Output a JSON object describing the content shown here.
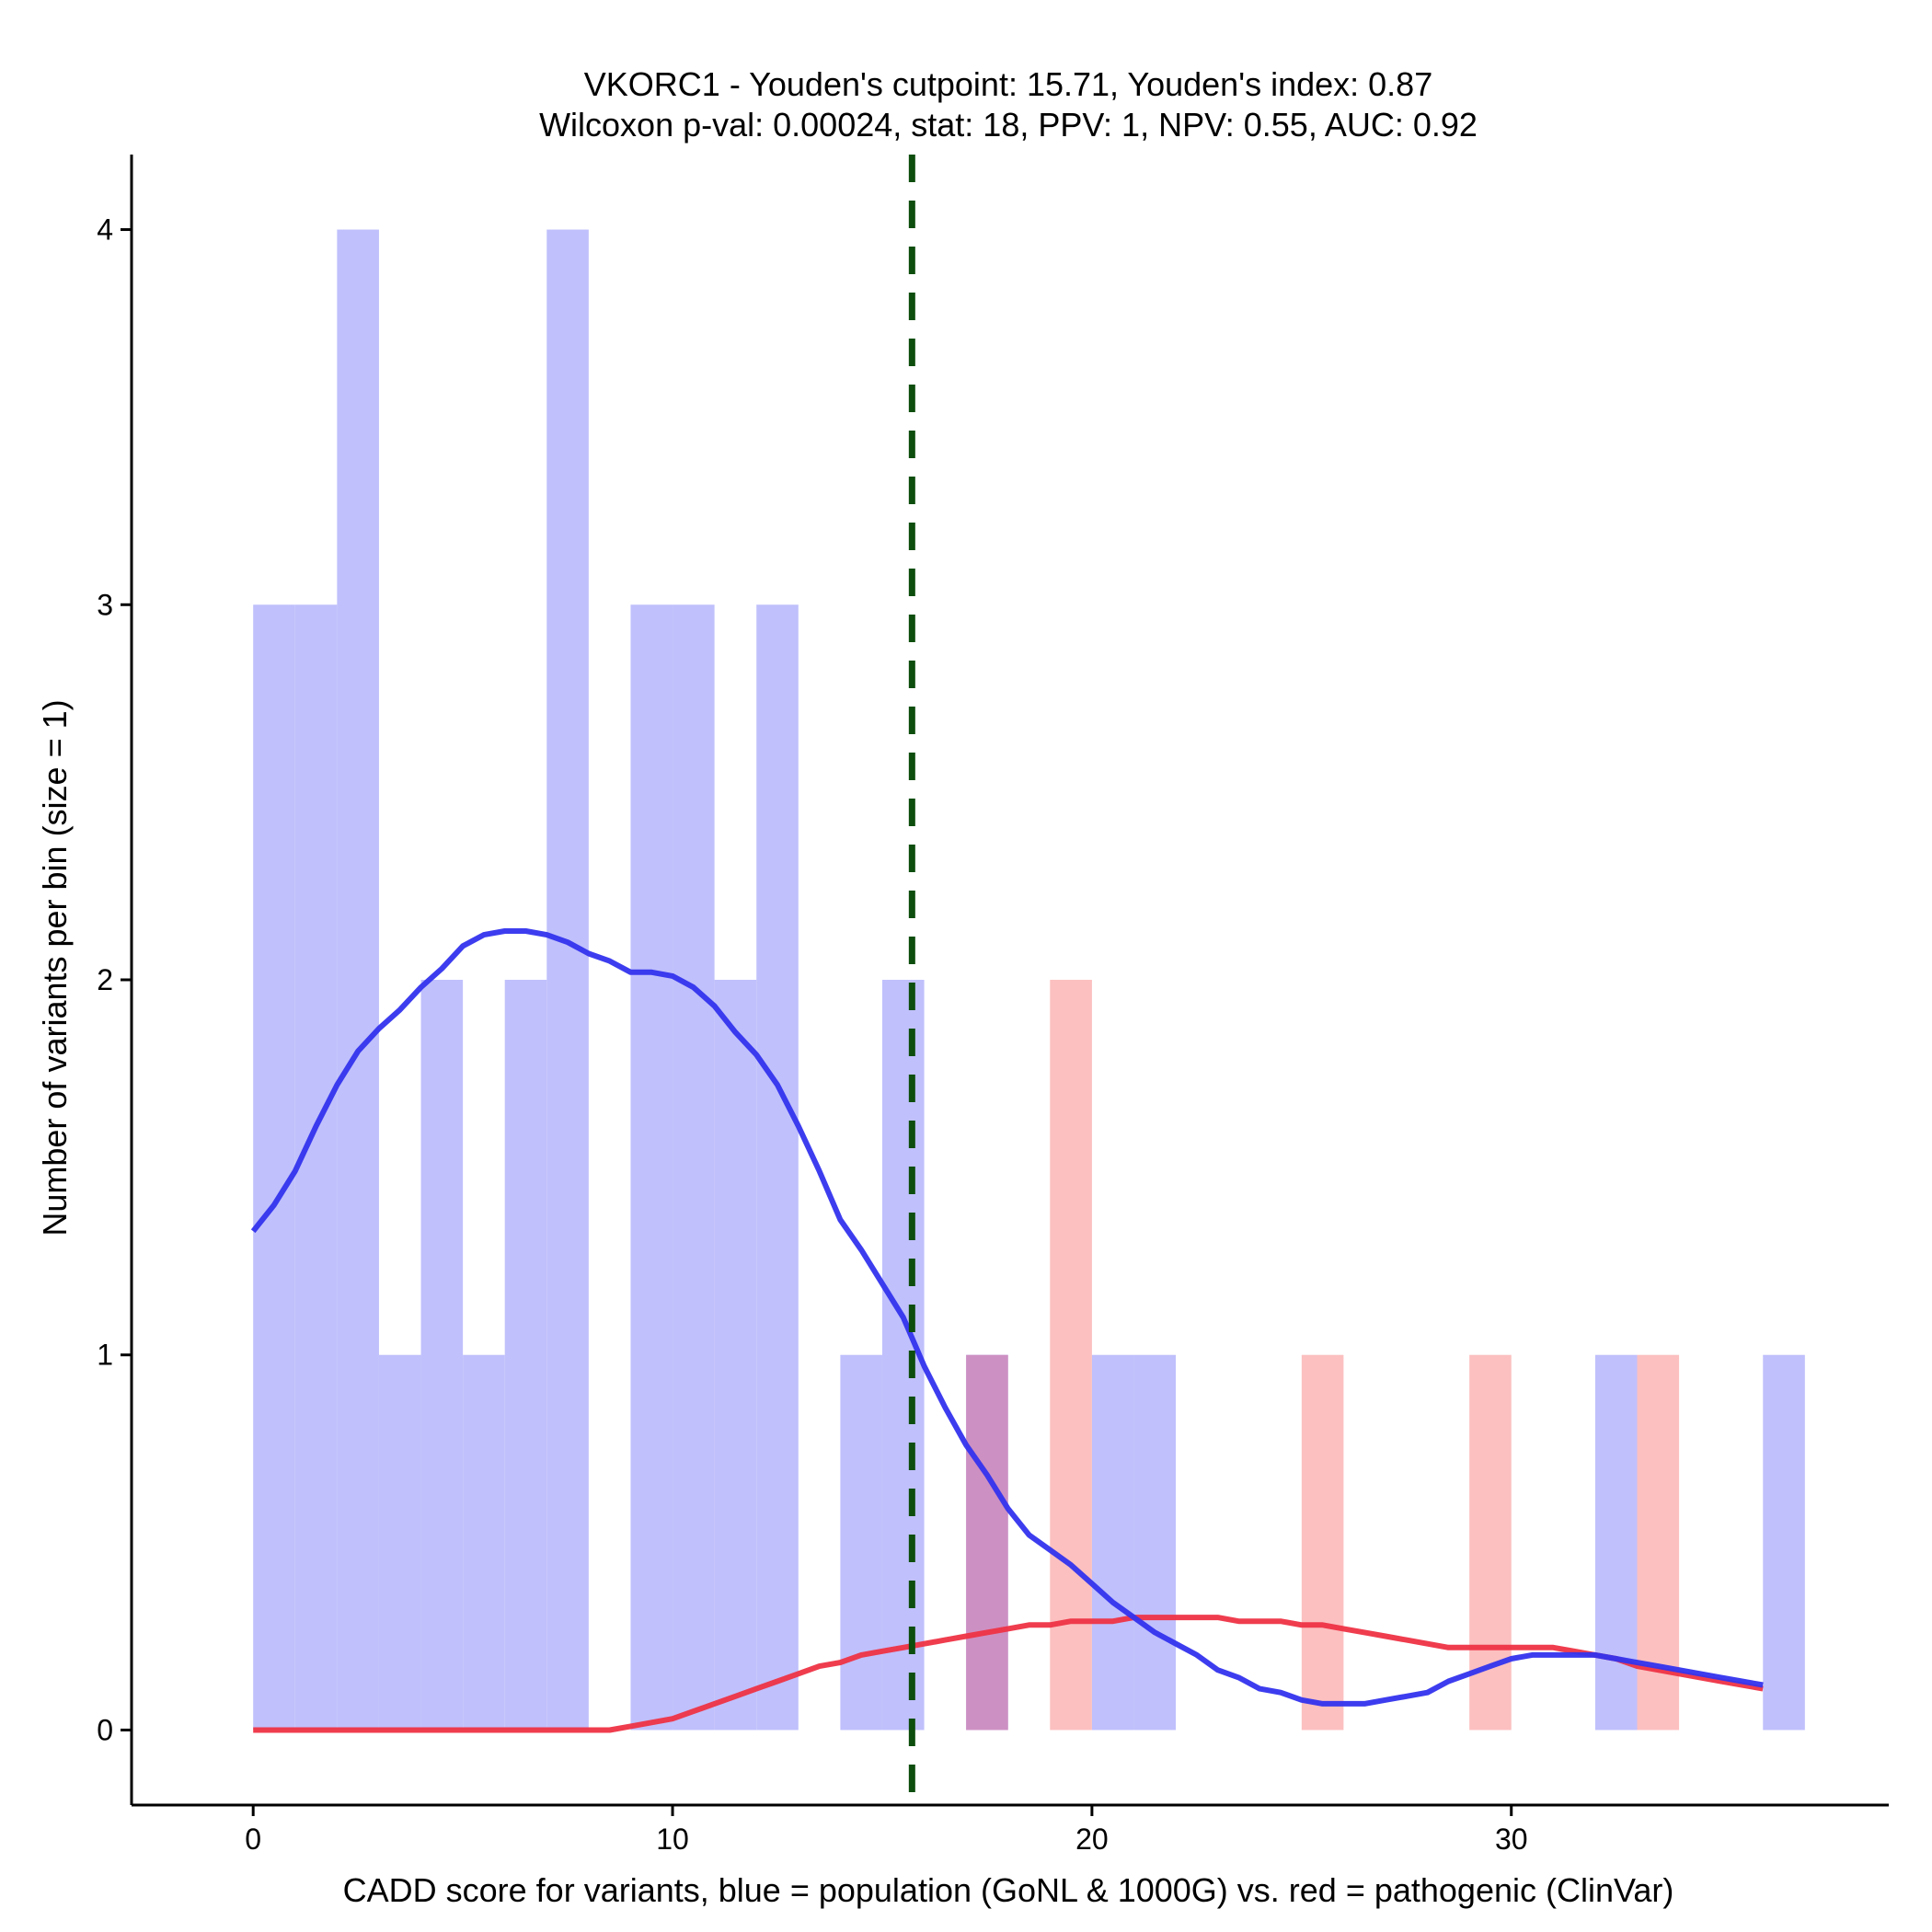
{
  "chart_data": {
    "type": "histogram+density",
    "title": [
      "VKORC1 - Youden's cutpoint: 15.71, Youden's index: 0.87",
      "Wilcoxon p-val: 0.00024, stat: 18, PPV: 1, NPV: 0.55, AUC: 0.92"
    ],
    "xlabel": "CADD score for variants, blue = population (GoNL & 1000G) vs. red = pathogenic (ClinVar)",
    "ylabel": "Number of variants per bin (size = 1)",
    "xlim": [
      -2.9,
      39
    ],
    "ylim": [
      -0.2,
      4.2
    ],
    "xticks": [
      0,
      10,
      20,
      30
    ],
    "yticks": [
      0,
      1,
      2,
      3,
      4
    ],
    "bin_size": 1,
    "cutpoint": 15.71,
    "colors": {
      "population_bar": "#c0c0fc",
      "pathogenic_bar": "#fcc0c0",
      "overlap_bar": "#cd90c2",
      "population_line": "#3333ee",
      "pathogenic_line": "#ee3344",
      "cutpoint_line": "#0d4d0d"
    },
    "series": [
      {
        "name": "population (GoNL & 1000G)",
        "bins": [
          {
            "start": 0,
            "count": 3
          },
          {
            "start": 1,
            "count": 3
          },
          {
            "start": 2,
            "count": 4
          },
          {
            "start": 3,
            "count": 1
          },
          {
            "start": 4,
            "count": 2
          },
          {
            "start": 5,
            "count": 1
          },
          {
            "start": 6,
            "count": 2
          },
          {
            "start": 7,
            "count": 4
          },
          {
            "start": 9,
            "count": 3
          },
          {
            "start": 10,
            "count": 3
          },
          {
            "start": 11,
            "count": 2
          },
          {
            "start": 12,
            "count": 3
          },
          {
            "start": 14,
            "count": 1
          },
          {
            "start": 15,
            "count": 2
          },
          {
            "start": 17,
            "count": 1
          },
          {
            "start": 20,
            "count": 1
          },
          {
            "start": 21,
            "count": 1
          },
          {
            "start": 32,
            "count": 1
          },
          {
            "start": 36,
            "count": 1
          }
        ],
        "density": {
          "x": [
            0,
            0.5,
            1,
            1.5,
            2,
            2.5,
            3,
            3.5,
            4,
            4.5,
            5,
            5.5,
            6,
            6.5,
            7,
            7.5,
            8,
            8.5,
            9,
            9.5,
            10,
            10.5,
            11,
            11.5,
            12,
            12.5,
            13,
            13.5,
            14,
            14.5,
            15,
            15.5,
            16,
            16.5,
            17,
            17.5,
            18,
            18.5,
            19,
            19.5,
            20,
            20.5,
            21,
            21.5,
            22,
            22.5,
            23,
            23.5,
            24,
            24.5,
            25,
            25.5,
            26,
            26.5,
            27,
            27.5,
            28,
            28.5,
            29,
            29.5,
            30,
            30.5,
            31,
            31.5,
            32,
            32.5,
            33,
            33.5,
            34,
            34.5,
            35,
            35.5,
            36
          ],
          "y": [
            1.33,
            1.4,
            1.49,
            1.61,
            1.72,
            1.81,
            1.87,
            1.92,
            1.98,
            2.03,
            2.09,
            2.12,
            2.13,
            2.13,
            2.12,
            2.1,
            2.07,
            2.05,
            2.02,
            2.02,
            2.01,
            1.98,
            1.93,
            1.86,
            1.8,
            1.72,
            1.61,
            1.49,
            1.36,
            1.28,
            1.19,
            1.1,
            0.97,
            0.86,
            0.76,
            0.68,
            0.59,
            0.52,
            0.48,
            0.44,
            0.39,
            0.34,
            0.3,
            0.26,
            0.23,
            0.2,
            0.16,
            0.14,
            0.11,
            0.1,
            0.08,
            0.07,
            0.07,
            0.07,
            0.08,
            0.09,
            0.1,
            0.13,
            0.15,
            0.17,
            0.19,
            0.2,
            0.2,
            0.2,
            0.2,
            0.19,
            0.18,
            0.17,
            0.16,
            0.15,
            0.14,
            0.13,
            0.12
          ]
        }
      },
      {
        "name": "pathogenic (ClinVar)",
        "bins": [
          {
            "start": 17,
            "count": 1
          },
          {
            "start": 19,
            "count": 2
          },
          {
            "start": 25,
            "count": 1
          },
          {
            "start": 29,
            "count": 1
          },
          {
            "start": 33,
            "count": 1
          }
        ],
        "density": {
          "x": [
            0,
            1,
            2,
            3,
            4,
            5,
            6,
            7,
            8,
            8.5,
            9,
            9.5,
            10,
            10.5,
            11,
            11.5,
            12,
            12.5,
            13,
            13.5,
            14,
            14.5,
            15,
            15.5,
            16,
            16.5,
            17,
            17.5,
            18,
            18.5,
            19,
            19.5,
            20,
            20.5,
            21,
            21.5,
            22,
            22.5,
            23,
            23.5,
            24,
            24.5,
            25,
            25.5,
            26,
            26.5,
            27,
            27.5,
            28,
            28.5,
            29,
            29.5,
            30,
            30.5,
            31,
            31.5,
            32,
            32.5,
            33,
            33.5,
            34,
            34.5,
            35,
            35.5,
            36
          ],
          "y": [
            0.0,
            0.0,
            0.0,
            0.0,
            0.0,
            0.0,
            0.0,
            0.0,
            0.0,
            0.0,
            0.01,
            0.02,
            0.03,
            0.05,
            0.07,
            0.09,
            0.11,
            0.13,
            0.15,
            0.17,
            0.18,
            0.2,
            0.21,
            0.22,
            0.23,
            0.24,
            0.25,
            0.26,
            0.27,
            0.28,
            0.28,
            0.29,
            0.29,
            0.29,
            0.3,
            0.3,
            0.3,
            0.3,
            0.3,
            0.29,
            0.29,
            0.29,
            0.28,
            0.28,
            0.27,
            0.26,
            0.25,
            0.24,
            0.23,
            0.22,
            0.22,
            0.22,
            0.22,
            0.22,
            0.22,
            0.21,
            0.2,
            0.19,
            0.17,
            0.16,
            0.15,
            0.14,
            0.13,
            0.12,
            0.11
          ]
        }
      }
    ]
  }
}
